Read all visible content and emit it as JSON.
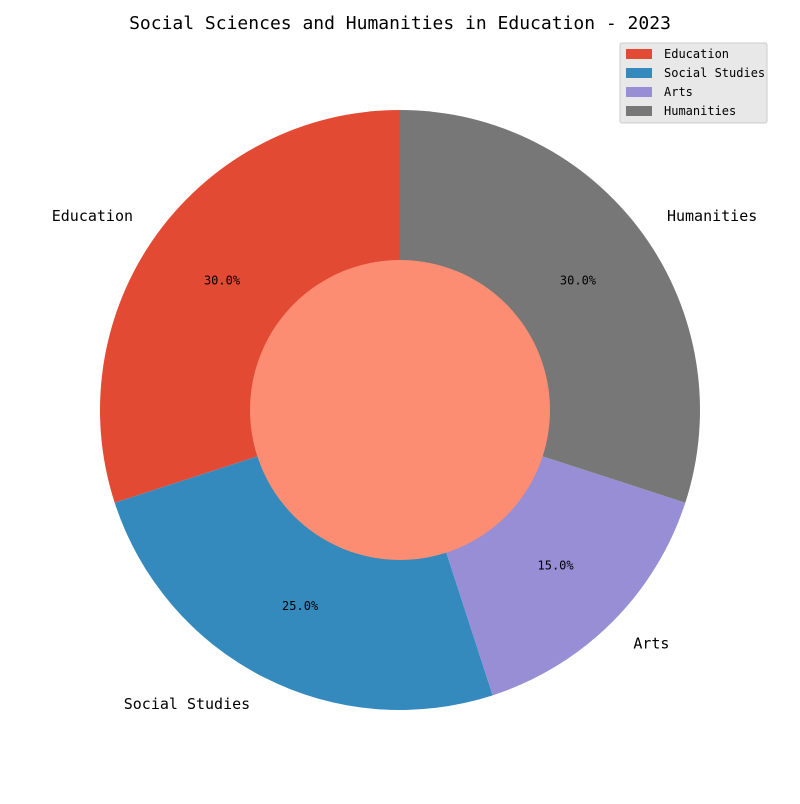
{
  "chart_data": {
    "type": "pie",
    "title": "Social Sciences and Humanities in Education - 2023",
    "categories": [
      "Education",
      "Social Studies",
      "Arts",
      "Humanities"
    ],
    "values": [
      30.0,
      25.0,
      15.0,
      30.0
    ],
    "percent_labels": [
      "30.0%",
      "25.0%",
      "15.0%",
      "30.0%"
    ],
    "colors": [
      "#E24A33",
      "#348ABD",
      "#988ED5",
      "#777777"
    ],
    "center_color": "#FC8D73",
    "donut": true,
    "start_angle_deg": 90,
    "direction": "counterclockwise",
    "legend": {
      "placement": "top-right",
      "entries": [
        "Education",
        "Social Studies",
        "Arts",
        "Humanities"
      ]
    }
  }
}
